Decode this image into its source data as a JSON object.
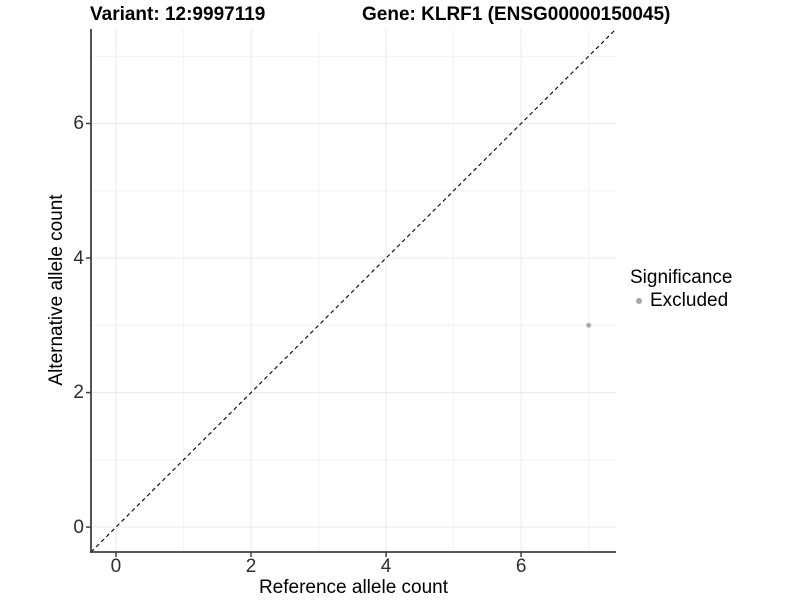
{
  "chart_data": {
    "type": "scatter",
    "title_left": "Variant: 12:9997119",
    "title_right": "Gene: KLRF1 (ENSG00000150045)",
    "xlabel": "Reference allele count",
    "ylabel": "Alternative allele count",
    "xlim": [
      -0.37,
      7.405
    ],
    "ylim": [
      -0.37,
      7.405
    ],
    "x_ticks": [
      0,
      2,
      4,
      6
    ],
    "y_ticks": [
      0,
      2,
      4,
      6
    ],
    "x_minor_ticks": [
      1,
      3,
      5,
      7
    ],
    "y_minor_ticks": [
      1,
      3,
      5,
      7
    ],
    "grid": true,
    "series": [
      {
        "name": "Excluded",
        "color": "#a8a8a8",
        "points": [
          {
            "x": 7,
            "y": 3
          }
        ]
      }
    ],
    "reference_line": {
      "type": "identity",
      "slope": 1,
      "intercept": 0,
      "style": "dashed",
      "color": "#000000"
    },
    "legend": {
      "title": "Significance",
      "position": "right",
      "items": [
        {
          "label": "Excluded",
          "color": "#a8a8a8"
        }
      ]
    },
    "colors": {
      "axis_line": "#404040",
      "tick_mark": "#404040",
      "tick_label": "#2e2e2e",
      "grid_major": "#e9e9e9",
      "grid_minor": "#f3f3f3",
      "panel_background": "#ffffff"
    }
  }
}
